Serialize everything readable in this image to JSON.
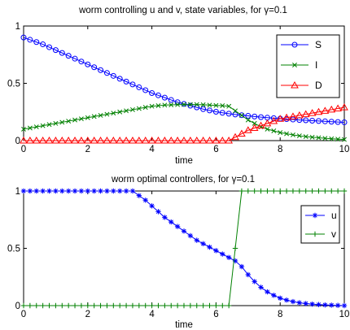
{
  "colors": {
    "S": "#0000ff",
    "I": "#008000",
    "D": "#ff0000",
    "u": "#0000ff",
    "v": "#008000",
    "axis": "#000000",
    "background": "#ffffff"
  },
  "chart_data": [
    {
      "type": "line",
      "title": "worm controlling u and v, state variables, for γ=0.1",
      "xlabel": "time",
      "ylabel": "",
      "xlim": [
        0,
        10
      ],
      "ylim": [
        0,
        1
      ],
      "xticks": [
        "0",
        "2",
        "4",
        "6",
        "8",
        "10"
      ],
      "yticks": [
        "0",
        "0.5",
        "1"
      ],
      "grid": false,
      "legend_position": "top-right",
      "x": [
        0,
        0.2,
        0.4,
        0.6,
        0.8,
        1,
        1.2,
        1.4,
        1.6,
        1.8,
        2,
        2.2,
        2.4,
        2.6,
        2.8,
        3,
        3.2,
        3.4,
        3.6,
        3.8,
        4,
        4.2,
        4.4,
        4.6,
        4.8,
        5,
        5.2,
        5.4,
        5.6,
        5.8,
        6,
        6.2,
        6.4,
        6.6,
        6.8,
        7,
        7.2,
        7.4,
        7.6,
        7.8,
        8,
        8.2,
        8.4,
        8.6,
        8.8,
        9,
        9.2,
        9.4,
        9.6,
        9.8,
        10
      ],
      "series": [
        {
          "name": "S",
          "marker": "circle",
          "values": [
            0.9,
            0.88,
            0.86,
            0.84,
            0.815,
            0.79,
            0.765,
            0.74,
            0.715,
            0.69,
            0.665,
            0.64,
            0.615,
            0.59,
            0.565,
            0.54,
            0.515,
            0.49,
            0.465,
            0.44,
            0.415,
            0.395,
            0.375,
            0.355,
            0.335,
            0.32,
            0.305,
            0.29,
            0.275,
            0.263,
            0.252,
            0.243,
            0.235,
            0.228,
            0.222,
            0.216,
            0.21,
            0.205,
            0.2,
            0.196,
            0.192,
            0.188,
            0.184,
            0.18,
            0.177,
            0.174,
            0.171,
            0.168,
            0.165,
            0.162,
            0.16
          ]
        },
        {
          "name": "I",
          "marker": "x",
          "values": [
            0.1,
            0.11,
            0.12,
            0.13,
            0.14,
            0.15,
            0.16,
            0.17,
            0.18,
            0.19,
            0.2,
            0.21,
            0.22,
            0.23,
            0.24,
            0.25,
            0.26,
            0.27,
            0.28,
            0.29,
            0.3,
            0.305,
            0.31,
            0.312,
            0.314,
            0.315,
            0.315,
            0.315,
            0.313,
            0.31,
            0.307,
            0.305,
            0.3,
            0.26,
            0.22,
            0.18,
            0.15,
            0.12,
            0.1,
            0.085,
            0.07,
            0.06,
            0.05,
            0.042,
            0.035,
            0.03,
            0.025,
            0.02,
            0.016,
            0.013,
            0.01
          ]
        },
        {
          "name": "D",
          "marker": "triangle",
          "values": [
            0,
            0,
            0,
            0,
            0,
            0,
            0,
            0,
            0,
            0,
            0,
            0,
            0,
            0,
            0,
            0,
            0,
            0,
            0,
            0,
            0,
            0,
            0,
            0,
            0,
            0,
            0,
            0,
            0,
            0,
            0,
            0,
            0,
            0.03,
            0.06,
            0.09,
            0.11,
            0.13,
            0.15,
            0.17,
            0.19,
            0.2,
            0.21,
            0.22,
            0.23,
            0.24,
            0.25,
            0.26,
            0.27,
            0.28,
            0.29
          ]
        }
      ]
    },
    {
      "type": "line",
      "title": "worm optimal controllers, for γ=0.1",
      "xlabel": "time",
      "ylabel": "",
      "xlim": [
        0,
        10
      ],
      "ylim": [
        0,
        1
      ],
      "xticks": [
        "0",
        "2",
        "4",
        "6",
        "8",
        "10"
      ],
      "yticks": [
        "0",
        "0.5",
        "1"
      ],
      "grid": false,
      "legend_position": "top-right",
      "x": [
        0,
        0.2,
        0.4,
        0.6,
        0.8,
        1,
        1.2,
        1.4,
        1.6,
        1.8,
        2,
        2.2,
        2.4,
        2.6,
        2.8,
        3,
        3.2,
        3.4,
        3.6,
        3.8,
        4,
        4.2,
        4.4,
        4.6,
        4.8,
        5,
        5.2,
        5.4,
        5.6,
        5.8,
        6,
        6.2,
        6.4,
        6.6,
        6.8,
        7,
        7.2,
        7.4,
        7.6,
        7.8,
        8,
        8.2,
        8.4,
        8.6,
        8.8,
        9,
        9.2,
        9.4,
        9.6,
        9.8,
        10
      ],
      "series": [
        {
          "name": "u",
          "marker": "asterisk",
          "values": [
            1,
            1,
            1,
            1,
            1,
            1,
            1,
            1,
            1,
            1,
            1,
            1,
            1,
            1,
            1,
            1,
            1,
            1,
            0.96,
            0.92,
            0.87,
            0.82,
            0.77,
            0.73,
            0.69,
            0.65,
            0.61,
            0.57,
            0.54,
            0.51,
            0.48,
            0.45,
            0.42,
            0.39,
            0.34,
            0.27,
            0.21,
            0.16,
            0.12,
            0.09,
            0.065,
            0.048,
            0.035,
            0.025,
            0.018,
            0.013,
            0.009,
            0.006,
            0.004,
            0.002,
            0
          ]
        },
        {
          "name": "v",
          "marker": "plus",
          "values": [
            0,
            0,
            0,
            0,
            0,
            0,
            0,
            0,
            0,
            0,
            0,
            0,
            0,
            0,
            0,
            0,
            0,
            0,
            0,
            0,
            0,
            0,
            0,
            0,
            0,
            0,
            0,
            0,
            0,
            0,
            0,
            0,
            0,
            0.5,
            1,
            1,
            1,
            1,
            1,
            1,
            1,
            1,
            1,
            1,
            1,
            1,
            1,
            1,
            1,
            1,
            1
          ]
        }
      ]
    }
  ]
}
